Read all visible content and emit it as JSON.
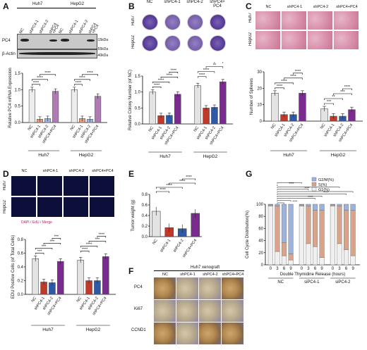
{
  "panels": {
    "A": "A",
    "B": "B",
    "C": "C",
    "D": "D",
    "E": "E",
    "F": "F",
    "G": "G"
  },
  "A": {
    "cell_headers": [
      "Huh7",
      "HepG2"
    ],
    "lane_labels": [
      "NC",
      "shPC4-1",
      "shPC4-2",
      "shPC4\n+PC4",
      "NC",
      "shPC4-1",
      "shPC4-2",
      "shPC4\n+PC4"
    ],
    "blot_labels": [
      "PC4",
      "β-Actin"
    ],
    "mw_labels": [
      "-15kDa",
      "-55kDa",
      "-40kDa"
    ],
    "chart_data": {
      "type": "bar",
      "ylabel": "Relative PC4 mRNA Expression",
      "ylim": [
        0,
        1.5
      ],
      "yticks": [
        "0.0",
        "0.5",
        "1.0",
        "1.5"
      ],
      "groups": [
        "Huh7",
        "HepG2"
      ],
      "categories": [
        "NC",
        "shPC4-1",
        "shPC4-2",
        "shPC4+PC4"
      ],
      "series": [
        {
          "group": "Huh7",
          "values": [
            1.0,
            0.1,
            0.12,
            0.95
          ]
        },
        {
          "group": "HepG2",
          "values": [
            1.0,
            0.12,
            0.1,
            0.8
          ]
        }
      ],
      "significance": [
        "****",
        "****",
        "****",
        "****",
        "****",
        "****"
      ]
    }
  },
  "B": {
    "headers": [
      "NC",
      "shPC4-1",
      "shPC4-2",
      "shPC4+\nPC4"
    ],
    "rows": [
      "Huh7",
      "HepG2"
    ],
    "chart_data": {
      "type": "bar",
      "ylabel": "Relative Colony Number (of NC)",
      "ylim": [
        0,
        1.5
      ],
      "yticks": [
        "0.0",
        "0.5",
        "1.0",
        "1.5"
      ],
      "groups": [
        "Huh7",
        "HepG2"
      ],
      "categories": [
        "NC",
        "shPC4-1",
        "shPC4-2",
        "shPC4+PC4"
      ],
      "series": [
        {
          "group": "Huh7",
          "values": [
            1.0,
            0.26,
            0.27,
            0.93
          ]
        },
        {
          "group": "HepG2",
          "values": [
            1.2,
            0.5,
            0.52,
            1.32
          ]
        }
      ],
      "significance": [
        "****",
        "****",
        "****",
        "****",
        "****",
        "****",
        "**",
        "***",
        "***",
        "***",
        "****",
        "****"
      ]
    }
  },
  "C": {
    "headers": [
      "NC",
      "shPC4-1",
      "shPC4-2",
      "shPC4+PC4"
    ],
    "rows": [
      "Huh7",
      "HepG2"
    ],
    "chart_data": {
      "type": "bar",
      "ylabel": "Number of Spheres",
      "ylim": [
        0,
        30
      ],
      "yticks": [
        "0",
        "10",
        "20",
        "30"
      ],
      "groups": [
        "Huh7",
        "HepG2"
      ],
      "categories": [
        "NC",
        "shPC4-1",
        "shPC4-2",
        "shPC4+PC4"
      ],
      "series": [
        {
          "group": "Huh7",
          "values": [
            17,
            4,
            4,
            17
          ]
        },
        {
          "group": "HepG2",
          "values": [
            7.5,
            3,
            3,
            7
          ]
        }
      ],
      "significance": [
        "****",
        "****",
        "****",
        "****",
        "***",
        "**",
        "***",
        "****"
      ]
    }
  },
  "D": {
    "headers": [
      "NC",
      "shPC4-1",
      "shPC4-2",
      "shPC4+PC4"
    ],
    "rows": [
      "Huh7",
      "HepG2"
    ],
    "legend": "DAPI / EdU / Merge",
    "chart_data": {
      "type": "bar",
      "ylabel": "EDU Positive Cells  (of Total Cells)",
      "ylim": [
        0,
        0.8
      ],
      "yticks": [
        "0.0",
        "0.2",
        "0.4",
        "0.6",
        "0.8"
      ],
      "groups": [
        "Huh7",
        "HepG2"
      ],
      "categories": [
        "NC",
        "shPC4-1",
        "shPC4-2",
        "shPC4+PC4"
      ],
      "series": [
        {
          "group": "Huh7",
          "values": [
            0.52,
            0.18,
            0.17,
            0.48
          ]
        },
        {
          "group": "HepG2",
          "values": [
            0.5,
            0.2,
            0.2,
            0.55
          ]
        }
      ],
      "significance": [
        "***",
        "***",
        "***",
        "***",
        "****",
        "****",
        "***",
        "****"
      ]
    }
  },
  "E": {
    "chart_data": {
      "type": "bar",
      "ylabel": "Tumor weight (g)",
      "ylim": [
        0,
        0.8
      ],
      "yticks": [
        "0.0",
        "0.2",
        "0.4",
        "0.6",
        "0.8"
      ],
      "categories": [
        "NC",
        "shPC4-1",
        "shPC4-2",
        "shPC4+PC4"
      ],
      "values": [
        0.48,
        0.17,
        0.15,
        0.44
      ],
      "significance": [
        "****",
        "****",
        "****",
        "****"
      ]
    }
  },
  "F": {
    "title": "Huh7 xenograft",
    "headers": [
      "NC",
      "shPC4-1",
      "shPC4-2",
      "shPC4+PC4"
    ],
    "rows": [
      "PC4",
      "Ki67",
      "CCND1"
    ]
  },
  "G": {
    "legend": [
      "G2/M(%)",
      "S(%)",
      "G1(%)"
    ],
    "colors": {
      "g2m": "#9db3db",
      "s": "#d9a489",
      "g1": "#f0f0f0"
    },
    "chart_data": {
      "type": "bar",
      "stacked": true,
      "ylabel": "Cell Cycle Distribution(%)",
      "xlabel": "Double Thymidine Release (hours)",
      "ylim": [
        0,
        100
      ],
      "yticks": [
        "0",
        "20",
        "40",
        "60",
        "80",
        "100"
      ],
      "groups": [
        "NC",
        "siPC4-1",
        "siPC4-2"
      ],
      "x": [
        "0",
        "3",
        "6",
        "9",
        "0",
        "3",
        "6",
        "9",
        "0",
        "3",
        "6",
        "9"
      ],
      "series": [
        {
          "name": "G1(%)",
          "values": [
            97,
            22,
            15,
            8,
            97,
            35,
            30,
            12,
            97,
            35,
            25,
            15
          ]
        },
        {
          "name": "S(%)",
          "values": [
            2,
            75,
            22,
            10,
            2,
            62,
            60,
            78,
            2,
            62,
            65,
            75
          ]
        },
        {
          "name": "G2/M(%)",
          "values": [
            1,
            3,
            63,
            82,
            1,
            3,
            10,
            10,
            1,
            3,
            10,
            10
          ]
        }
      ],
      "significance": [
        "****",
        "****",
        "****",
        "****",
        "****",
        "****",
        "****",
        "****",
        "****",
        "****"
      ]
    }
  }
}
